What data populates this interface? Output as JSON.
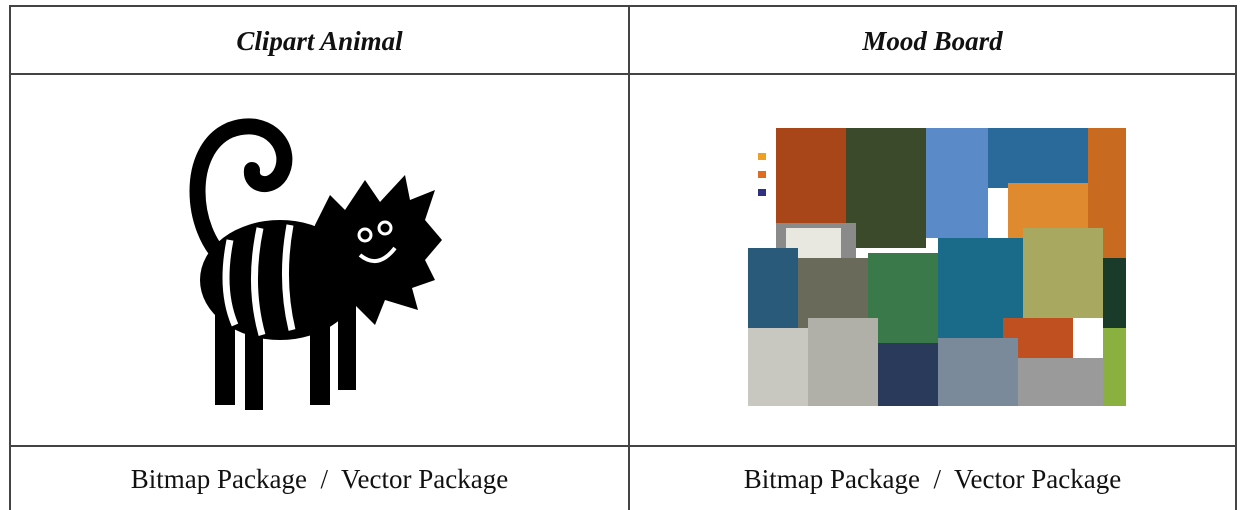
{
  "table": {
    "header": [
      "Clipart Animal",
      "Mood Board"
    ],
    "rows": [
      [
        "Bitmap Package  /  Vector Package",
        "Bitmap Package  /  Vector Package"
      ]
    ]
  }
}
